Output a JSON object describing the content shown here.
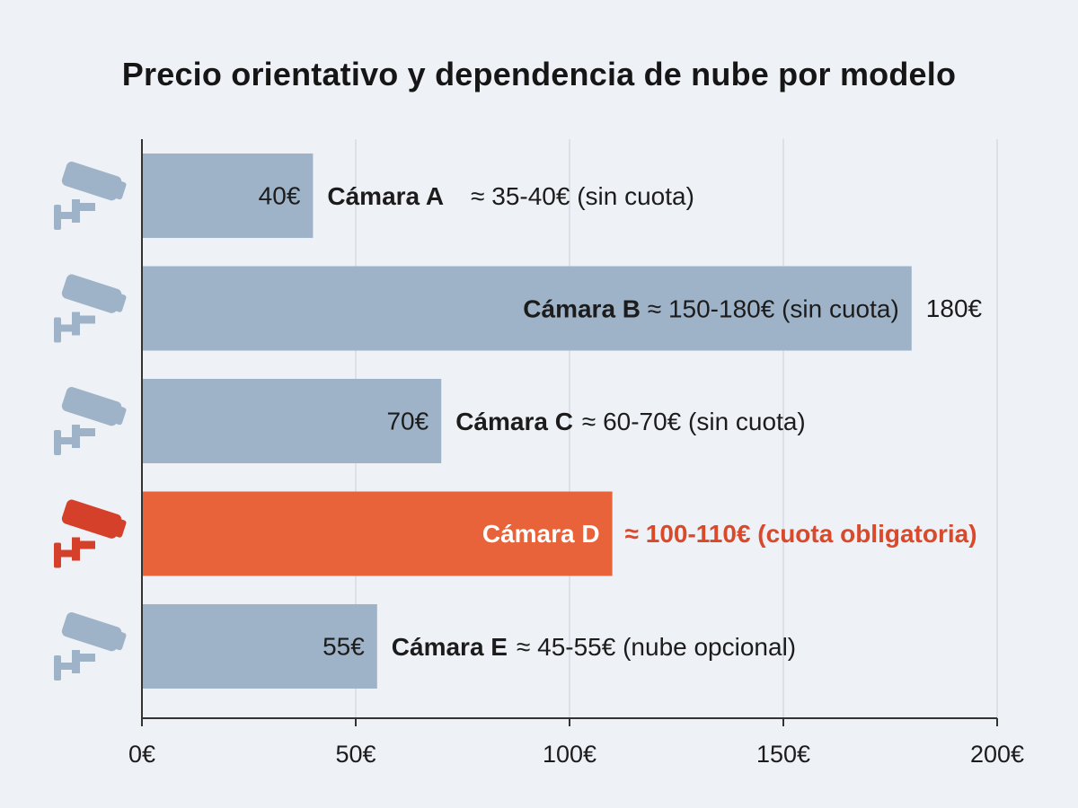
{
  "chart_data": {
    "type": "bar",
    "orientation": "horizontal",
    "title": "Precio orientativo y dependencia de nube por modelo",
    "xlabel": "",
    "ylabel": "",
    "xlim": [
      0,
      200
    ],
    "x_ticks": [
      "0€",
      "50€",
      "100€",
      "150€",
      "200€"
    ],
    "x_tick_values": [
      0,
      50,
      100,
      150,
      200
    ],
    "grid": "vertical",
    "legend": "none",
    "categories": [
      "Cámara A",
      "Cámara B",
      "Cámara C",
      "Cámara D",
      "Cámara E"
    ],
    "values": [
      40,
      180,
      70,
      110,
      55
    ],
    "value_labels": [
      "40€",
      "180€",
      "70€",
      "",
      "55€"
    ],
    "range_labels": [
      "≈ 35-40€ (sin cuota)",
      "≈ 150-180€ (sin cuota)",
      "≈ 60-70€ (sin cuota)",
      "≈ 100-110€ (cuota obligatoria)",
      "≈ 45-55€ (nube opcional)"
    ],
    "highlighted": [
      false,
      false,
      false,
      true,
      false
    ],
    "icon": "security-camera-icon"
  },
  "colors": {
    "bar": "#9fb3c8",
    "bar_highlight": "#e8623a",
    "text_highlight": "#d9492a",
    "icon": "#9fb3c8",
    "icon_highlight": "#d5402a",
    "grid": "#d6dbe3",
    "axis": "#333333"
  }
}
